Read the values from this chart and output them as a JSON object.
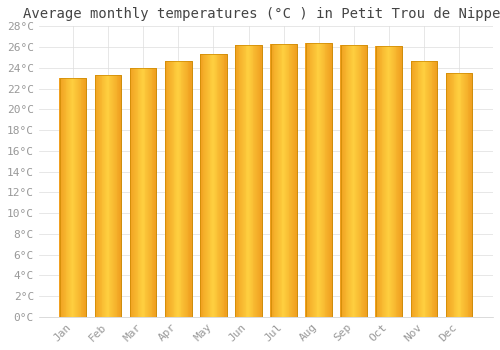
{
  "months": [
    "Jan",
    "Feb",
    "Mar",
    "Apr",
    "May",
    "Jun",
    "Jul",
    "Aug",
    "Sep",
    "Oct",
    "Nov",
    "Dec"
  ],
  "values": [
    23.0,
    23.3,
    24.0,
    24.7,
    25.3,
    26.2,
    26.3,
    26.4,
    26.2,
    26.1,
    24.7,
    23.5
  ],
  "bar_color_dark": "#F0A020",
  "bar_color_light": "#FFD040",
  "bar_edge_color": "#CC8800",
  "title": "Average monthly temperatures (°C ) in Petit Trou de Nippes",
  "ylim": [
    0,
    28
  ],
  "ytick_step": 2,
  "background_color": "#ffffff",
  "grid_color": "#dddddd",
  "title_fontsize": 10,
  "tick_fontsize": 8,
  "font_family": "monospace"
}
